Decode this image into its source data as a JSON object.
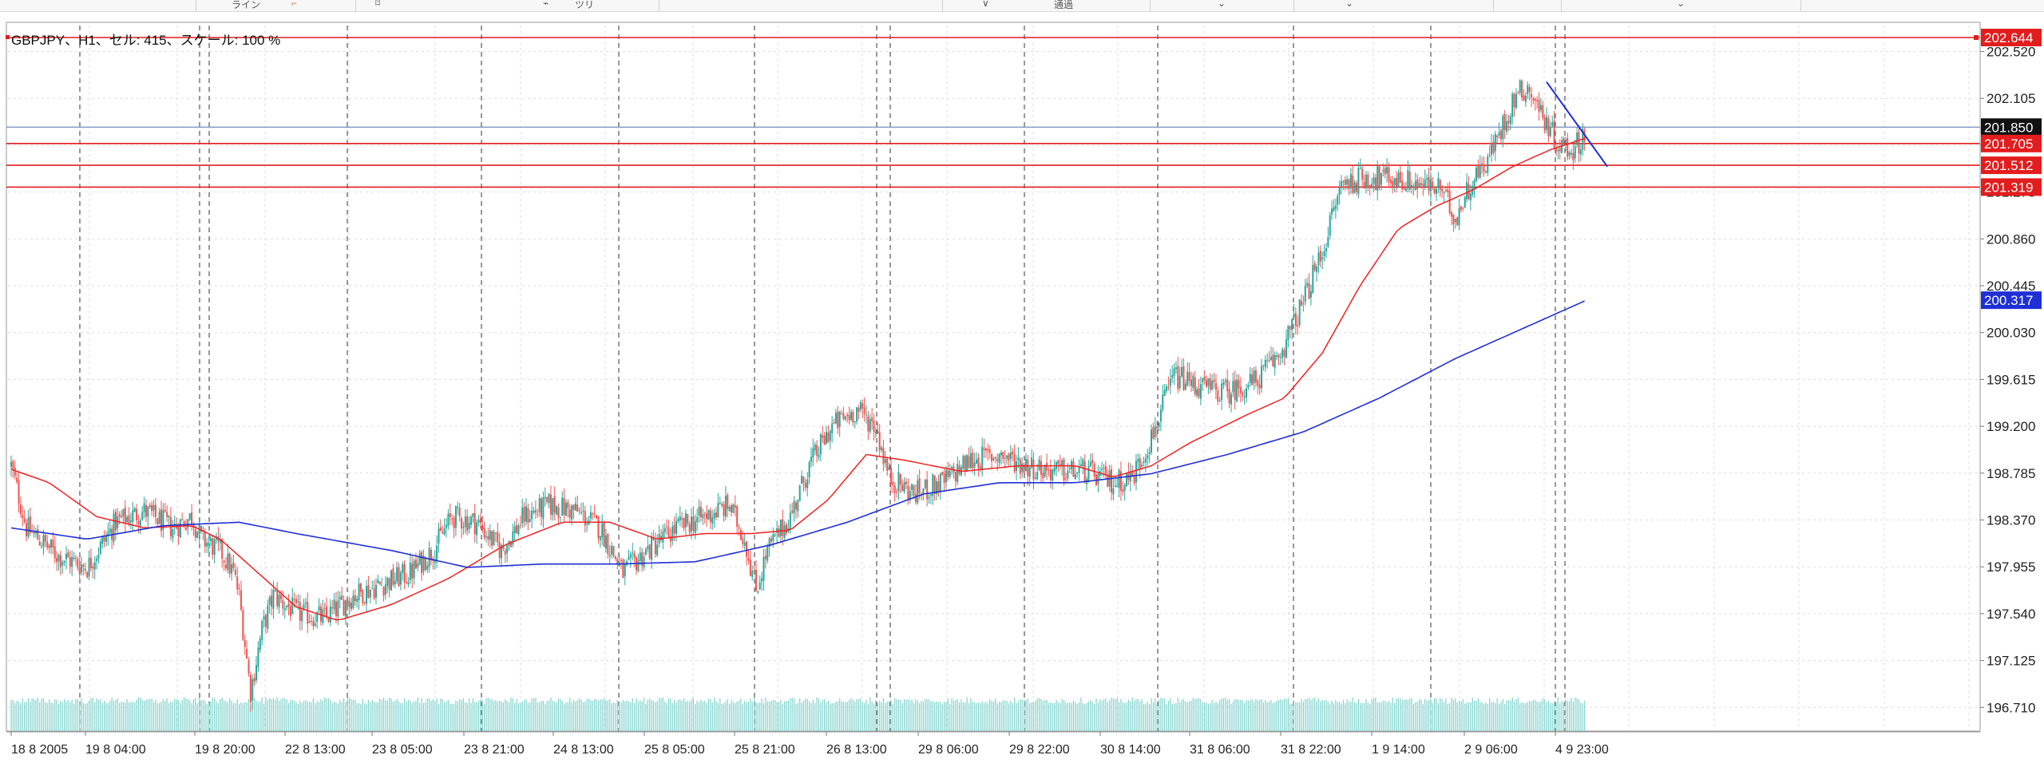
{
  "toolbar": {
    "items": [
      "ライン",
      "⌐",
      "⌑",
      "⌁",
      "ツリ",
      "∨",
      "通過",
      "⌄",
      "⌄",
      "⌄"
    ]
  },
  "chart": {
    "info": "GBPJPY、H1、セル: 415、スケール: 100 %",
    "symbol": "GBPJPY",
    "timeframe": "H1",
    "colors": {
      "bull": "#26a69a",
      "bear": "#ef5350",
      "ma_fast": "#ee2222",
      "ma_slow": "#1f2fd6",
      "level_line": "#e31d1d",
      "bid_line": "#7f97c9",
      "grid": "#dddddd",
      "separator": "#555555",
      "volume": "#7fd3cd"
    }
  },
  "chart_data": {
    "type": "candlestick",
    "ylim": [
      196.5,
      202.75
    ],
    "y_ticks": [
      "202.520",
      "202.105",
      "201.690",
      "201.275",
      "200.860",
      "200.445",
      "200.030",
      "199.615",
      "199.200",
      "198.785",
      "198.370",
      "197.955",
      "197.540",
      "197.125",
      "196.710"
    ],
    "x_labels": [
      "18 8 2005",
      "19 8 04:00",
      "19 8 20:00",
      "22 8 13:00",
      "23 8 05:00",
      "23 8 21:00",
      "24 8 13:00",
      "25 8 05:00",
      "25 8 21:00",
      "26 8 13:00",
      "29 8 06:00",
      "29 8 22:00",
      "30 8 14:00",
      "31 8 06:00",
      "31 8 22:00",
      "1 9 14:00",
      "2 9 06:00",
      "4 9 23:00"
    ],
    "price_tags": [
      {
        "value": "202.644",
        "style": "level"
      },
      {
        "value": "201.850",
        "style": "bid"
      },
      {
        "value": "201.705",
        "style": "level"
      },
      {
        "value": "201.512",
        "style": "level"
      },
      {
        "value": "201.319",
        "style": "level"
      },
      {
        "value": "200.317",
        "style": "ma_slow"
      }
    ],
    "horizontal_levels": [
      202.644,
      201.705,
      201.512,
      201.319
    ],
    "bid": 201.85,
    "close_path": [
      [
        0,
        198.85
      ],
      [
        8,
        198.3
      ],
      [
        25,
        198.05
      ],
      [
        40,
        197.95
      ],
      [
        55,
        198.35
      ],
      [
        70,
        198.45
      ],
      [
        85,
        198.3
      ],
      [
        95,
        198.4
      ],
      [
        100,
        198.2
      ],
      [
        110,
        198.1
      ],
      [
        117,
        197.9
      ],
      [
        120,
        197.7
      ],
      [
        126,
        196.85
      ],
      [
        132,
        197.4
      ],
      [
        138,
        197.7
      ],
      [
        150,
        197.55
      ],
      [
        165,
        197.5
      ],
      [
        180,
        197.7
      ],
      [
        195,
        197.8
      ],
      [
        210,
        197.9
      ],
      [
        222,
        198.1
      ],
      [
        232,
        198.4
      ],
      [
        245,
        198.35
      ],
      [
        258,
        198.1
      ],
      [
        270,
        198.4
      ],
      [
        283,
        198.5
      ],
      [
        297,
        198.45
      ],
      [
        310,
        198.3
      ],
      [
        322,
        197.9
      ],
      [
        335,
        198.1
      ],
      [
        350,
        198.3
      ],
      [
        365,
        198.4
      ],
      [
        378,
        198.5
      ],
      [
        386,
        198.2
      ],
      [
        392,
        197.75
      ],
      [
        398,
        198.1
      ],
      [
        410,
        198.4
      ],
      [
        420,
        198.85
      ],
      [
        432,
        199.2
      ],
      [
        445,
        199.35
      ],
      [
        455,
        199.2
      ],
      [
        462,
        198.75
      ],
      [
        475,
        198.6
      ],
      [
        490,
        198.7
      ],
      [
        505,
        198.9
      ],
      [
        520,
        198.95
      ],
      [
        535,
        198.85
      ],
      [
        550,
        198.8
      ],
      [
        565,
        198.8
      ],
      [
        580,
        198.7
      ],
      [
        590,
        198.75
      ],
      [
        600,
        199.1
      ],
      [
        612,
        199.65
      ],
      [
        625,
        199.55
      ],
      [
        640,
        199.5
      ],
      [
        655,
        199.6
      ],
      [
        668,
        199.85
      ],
      [
        680,
        200.3
      ],
      [
        690,
        200.75
      ],
      [
        700,
        201.35
      ],
      [
        712,
        201.4
      ],
      [
        725,
        201.4
      ],
      [
        740,
        201.35
      ],
      [
        752,
        201.3
      ],
      [
        760,
        201.05
      ],
      [
        768,
        201.35
      ],
      [
        778,
        201.6
      ],
      [
        786,
        201.9
      ],
      [
        792,
        202.15
      ],
      [
        798,
        202.2
      ],
      [
        806,
        201.95
      ],
      [
        814,
        201.7
      ],
      [
        822,
        201.65
      ],
      [
        828,
        201.8
      ]
    ],
    "moving_averages": {
      "fast": [
        [
          0,
          198.82
        ],
        [
          20,
          198.7
        ],
        [
          45,
          198.4
        ],
        [
          70,
          198.3
        ],
        [
          95,
          198.32
        ],
        [
          110,
          198.2
        ],
        [
          130,
          197.9
        ],
        [
          150,
          197.6
        ],
        [
          172,
          197.48
        ],
        [
          200,
          197.62
        ],
        [
          230,
          197.85
        ],
        [
          260,
          198.15
        ],
        [
          290,
          198.35
        ],
        [
          315,
          198.35
        ],
        [
          340,
          198.2
        ],
        [
          365,
          198.25
        ],
        [
          390,
          198.25
        ],
        [
          410,
          198.28
        ],
        [
          430,
          198.55
        ],
        [
          450,
          198.95
        ],
        [
          470,
          198.9
        ],
        [
          500,
          198.8
        ],
        [
          530,
          198.85
        ],
        [
          560,
          198.85
        ],
        [
          580,
          198.75
        ],
        [
          600,
          198.85
        ],
        [
          620,
          199.05
        ],
        [
          650,
          199.3
        ],
        [
          670,
          199.45
        ],
        [
          690,
          199.85
        ],
        [
          710,
          200.45
        ],
        [
          730,
          200.95
        ],
        [
          750,
          201.15
        ],
        [
          770,
          201.3
        ],
        [
          790,
          201.5
        ],
        [
          810,
          201.65
        ],
        [
          828,
          201.75
        ]
      ],
      "slow": [
        [
          0,
          198.3
        ],
        [
          40,
          198.2
        ],
        [
          80,
          198.32
        ],
        [
          120,
          198.35
        ],
        [
          150,
          198.25
        ],
        [
          200,
          198.1
        ],
        [
          240,
          197.95
        ],
        [
          280,
          197.98
        ],
        [
          320,
          197.98
        ],
        [
          360,
          198.0
        ],
        [
          400,
          198.15
        ],
        [
          440,
          198.35
        ],
        [
          480,
          198.6
        ],
        [
          520,
          198.7
        ],
        [
          560,
          198.7
        ],
        [
          600,
          198.78
        ],
        [
          640,
          198.95
        ],
        [
          680,
          199.15
        ],
        [
          720,
          199.45
        ],
        [
          760,
          199.8
        ],
        [
          800,
          200.1
        ],
        [
          828,
          200.31
        ]
      ]
    },
    "trendline": [
      [
        808,
        202.25
      ],
      [
        840,
        201.5
      ]
    ]
  }
}
